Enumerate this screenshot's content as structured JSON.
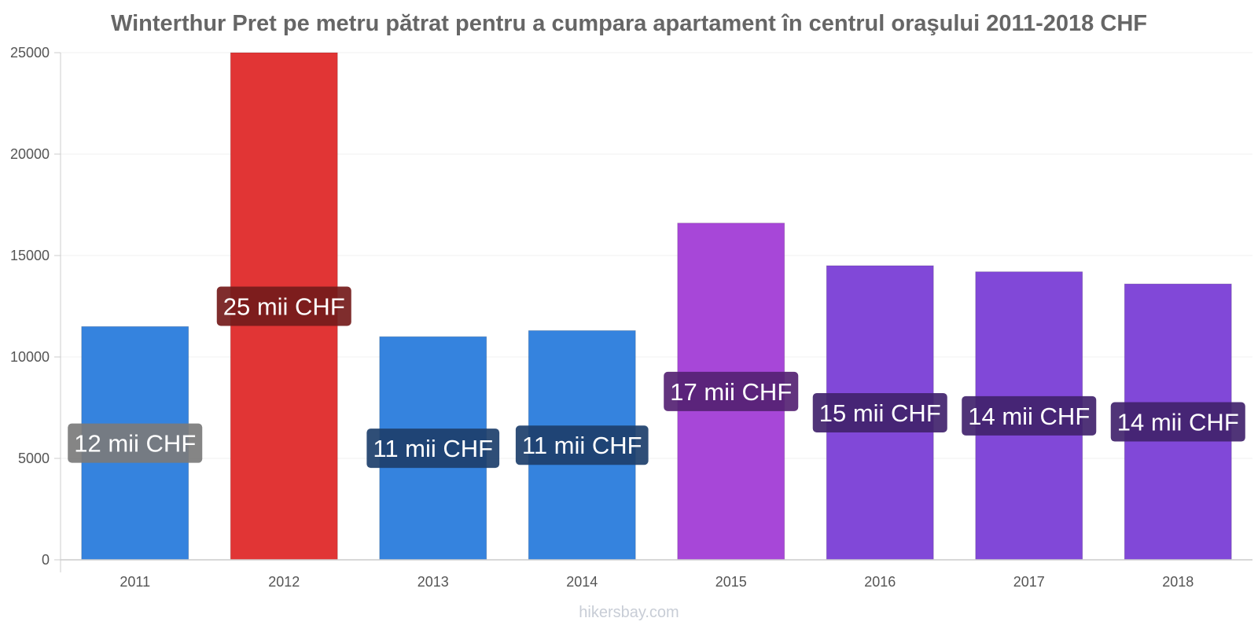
{
  "chart_data": {
    "type": "bar",
    "title": "Winterthur Pret pe metru pătrat pentru a cumpara apartament în centrul oraşului 2011-2018 CHF",
    "xlabel": "",
    "ylabel": "",
    "categories": [
      "2011",
      "2012",
      "2013",
      "2014",
      "2015",
      "2016",
      "2017",
      "2018"
    ],
    "values": [
      11500,
      25000,
      11000,
      11300,
      16600,
      14500,
      14200,
      13600
    ],
    "data_labels": [
      "12 mii CHF",
      "25 mii CHF",
      "11 mii CHF",
      "11 mii CHF",
      "17 mii CHF",
      "15 mii CHF",
      "14 mii CHF",
      "14 mii CHF"
    ],
    "bar_colors": [
      "#3583de",
      "#e13535",
      "#3583de",
      "#3583de",
      "#a747d8",
      "#8148d8",
      "#8148d8",
      "#8148d8"
    ],
    "label_box_colors": [
      "#7b7b7b",
      "#741b1b",
      "#1d3f6b",
      "#1d3f6b",
      "#552273",
      "#41236d",
      "#41236d",
      "#41236d"
    ],
    "yticks": [
      "0",
      "5000",
      "10000",
      "15000",
      "20000",
      "25000"
    ],
    "ylim": [
      0,
      25000
    ],
    "grid": true,
    "legend": "none"
  },
  "watermark": "hikersbay.com"
}
